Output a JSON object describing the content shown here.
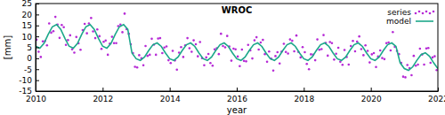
{
  "chart_data": {
    "type": "scatter",
    "title": "WROC",
    "x_label": "year",
    "y_label": "[mm]",
    "xlim": [
      2010,
      2022
    ],
    "xticks": [
      2010,
      2012,
      2014,
      2016,
      2018,
      2020,
      2022
    ],
    "ylim": [
      -15,
      25
    ],
    "yticks": [
      -15,
      -10,
      -5,
      0,
      5,
      10,
      15,
      20,
      25
    ],
    "grid": false,
    "legend": "top-right",
    "series": [
      {
        "name": "series",
        "type": "scatter",
        "marker": "dot",
        "color": "#b62ad6",
        "x": [
          2010.03,
          2010.09,
          2010.155,
          2010.215,
          2010.28,
          2010.34,
          2010.405,
          2010.465,
          2010.53,
          2010.59,
          2010.655,
          2010.715,
          2010.78,
          2010.84,
          2010.905,
          2010.965,
          2011.03,
          2011.09,
          2011.155,
          2011.215,
          2011.28,
          2011.34,
          2011.405,
          2011.465,
          2011.53,
          2011.59,
          2011.655,
          2011.715,
          2011.78,
          2011.84,
          2011.905,
          2011.965,
          2012.03,
          2012.09,
          2012.155,
          2012.215,
          2012.28,
          2012.34,
          2012.405,
          2012.465,
          2012.53,
          2012.59,
          2012.655,
          2012.715,
          2012.78,
          2012.84,
          2012.905,
          2012.965,
          2013.03,
          2013.09,
          2013.155,
          2013.215,
          2013.28,
          2013.34,
          2013.405,
          2013.465,
          2013.53,
          2013.59,
          2013.655,
          2013.715,
          2013.78,
          2013.84,
          2013.905,
          2013.965,
          2014.03,
          2014.09,
          2014.155,
          2014.215,
          2014.28,
          2014.34,
          2014.405,
          2014.465,
          2014.53,
          2014.59,
          2014.655,
          2014.715,
          2014.78,
          2014.84,
          2014.905,
          2014.965,
          2015.03,
          2015.09,
          2015.155,
          2015.215,
          2015.28,
          2015.34,
          2015.405,
          2015.465,
          2015.53,
          2015.59,
          2015.655,
          2015.715,
          2015.78,
          2015.84,
          2015.905,
          2015.965,
          2016.03,
          2016.09,
          2016.155,
          2016.215,
          2016.28,
          2016.34,
          2016.405,
          2016.465,
          2016.53,
          2016.59,
          2016.655,
          2016.715,
          2016.78,
          2016.84,
          2016.905,
          2016.965,
          2017.03,
          2017.09,
          2017.155,
          2017.215,
          2017.28,
          2017.34,
          2017.405,
          2017.465,
          2017.53,
          2017.59,
          2017.655,
          2017.715,
          2017.78,
          2017.84,
          2017.905,
          2017.965,
          2018.03,
          2018.09,
          2018.155,
          2018.215,
          2018.28,
          2018.34,
          2018.405,
          2018.465,
          2018.53,
          2018.59,
          2018.655,
          2018.715,
          2018.78,
          2018.84,
          2018.905,
          2018.965,
          2019.03,
          2019.09,
          2019.155,
          2019.215,
          2019.28,
          2019.34,
          2019.405,
          2019.465,
          2019.53,
          2019.59,
          2019.655,
          2019.715,
          2019.78,
          2019.84,
          2019.905,
          2019.965,
          2020.03,
          2020.09,
          2020.155,
          2020.215,
          2020.28,
          2020.34,
          2020.405,
          2020.465,
          2020.53,
          2020.59,
          2020.655,
          2020.715,
          2020.78,
          2020.84,
          2020.905,
          2020.965,
          2021.03,
          2021.09,
          2021.155,
          2021.215,
          2021.28,
          2021.34,
          2021.405,
          2021.465,
          2021.53,
          2021.59,
          2021.655,
          2021.715,
          2021.78,
          2021.84,
          2021.905,
          2021.965
        ],
        "values": [
          8.5,
          3.0,
          0.6,
          7.7,
          7.8,
          5.9,
          15.9,
          11.7,
          12.4,
          18.9,
          15.4,
          9.3,
          15.2,
          14.2,
          6.1,
          8.3,
          10.5,
          4.1,
          2.6,
          9.7,
          6.8,
          3.9,
          12.9,
          15.7,
          11.4,
          15.9,
          18.4,
          12.3,
          9.2,
          13.2,
          10.1,
          4.3,
          7.5,
          8.1,
          1.6,
          6.7,
          9.8,
          6.9,
          6.9,
          14.7,
          15.4,
          11.9,
          20.4,
          13.3,
          11.2,
          6.4,
          2.4,
          -3.9,
          -4.2,
          1.4,
          0.0,
          -3.2,
          5.6,
          1.1,
          1.6,
          8.9,
          6.2,
          1.6,
          9.0,
          9.2,
          2.4,
          4.9,
          5.4,
          -0.9,
          -2.2,
          3.4,
          -1.0,
          -5.2,
          2.6,
          5.1,
          0.6,
          5.9,
          9.2,
          4.6,
          3.0,
          8.2,
          6.4,
          0.9,
          7.4,
          0.1,
          -3.2,
          0.4,
          2.0,
          -2.2,
          -3.4,
          4.1,
          4.6,
          1.9,
          11.2,
          5.6,
          5.0,
          10.2,
          5.4,
          -1.1,
          4.4,
          4.1,
          0.8,
          -3.6,
          4.0,
          -1.2,
          -1.4,
          6.1,
          3.6,
          -0.1,
          8.2,
          9.6,
          4.0,
          7.2,
          8.4,
          1.9,
          -1.6,
          3.1,
          -0.2,
          -5.6,
          1.0,
          2.8,
          -2.4,
          3.1,
          6.6,
          2.9,
          2.2,
          8.6,
          8.0,
          3.2,
          10.4,
          2.9,
          0.4,
          5.1,
          2.8,
          -2.6,
          -5.0,
          1.8,
          1.6,
          -0.9,
          8.6,
          3.9,
          4.2,
          10.6,
          7.0,
          1.2,
          7.4,
          6.9,
          -0.6,
          2.1,
          4.8,
          -1.6,
          -3.0,
          3.8,
          0.6,
          -2.9,
          5.6,
          7.9,
          3.2,
          7.6,
          10.0,
          4.2,
          1.4,
          5.9,
          3.4,
          -1.9,
          1.8,
          2.4,
          -4.0,
          0.8,
          3.6,
          0.1,
          -0.4,
          6.9,
          7.2,
          3.6,
          12.0,
          5.2,
          3.4,
          1.9,
          -2.1,
          -8.4,
          -8.7,
          -3.1,
          -4.5,
          -7.7,
          1.1,
          -3.4,
          -2.9,
          4.4,
          1.7,
          -2.9,
          4.5,
          4.7,
          -2.1,
          0.4,
          0.9,
          -5.4
        ]
      },
      {
        "name": "model",
        "type": "line",
        "line_style": "solid",
        "color": "#1ca88a",
        "x": [
          2010,
          2010.125,
          2010.25,
          2010.375,
          2010.5,
          2010.625,
          2010.75,
          2010.875,
          2011,
          2011.125,
          2011.25,
          2011.375,
          2011.5,
          2011.625,
          2011.75,
          2011.875,
          2012,
          2012.125,
          2012.25,
          2012.375,
          2012.5,
          2012.625,
          2012.75,
          2012.875,
          2013,
          2013.125,
          2013.25,
          2013.375,
          2013.5,
          2013.625,
          2013.75,
          2013.875,
          2014,
          2014.125,
          2014.25,
          2014.375,
          2014.5,
          2014.625,
          2014.75,
          2014.875,
          2015,
          2015.125,
          2015.25,
          2015.375,
          2015.5,
          2015.625,
          2015.75,
          2015.875,
          2016,
          2016.125,
          2016.25,
          2016.375,
          2016.5,
          2016.625,
          2016.75,
          2016.875,
          2017,
          2017.125,
          2017.25,
          2017.375,
          2017.5,
          2017.625,
          2017.75,
          2017.875,
          2018,
          2018.125,
          2018.25,
          2018.375,
          2018.5,
          2018.625,
          2018.75,
          2018.875,
          2019,
          2019.125,
          2019.25,
          2019.375,
          2019.5,
          2019.625,
          2019.75,
          2019.875,
          2020,
          2020.125,
          2020.25,
          2020.375,
          2020.5,
          2020.625,
          2020.75,
          2020.875,
          2021,
          2021.125,
          2021.25,
          2021.375,
          2021.5,
          2021.625,
          2021.75,
          2021.875,
          2022
        ],
        "values": [
          5.5,
          4.6,
          6.8,
          10.9,
          14.4,
          15.4,
          13.2,
          9.1,
          5.5,
          4.6,
          6.8,
          10.9,
          14.4,
          15.4,
          13.2,
          9.1,
          5.5,
          4.6,
          6.8,
          10.9,
          14.4,
          15.4,
          13.2,
          2.4,
          -0.2,
          -1.0,
          0.6,
          3.6,
          6.2,
          7.0,
          5.4,
          2.4,
          -0.2,
          -1.0,
          0.6,
          3.6,
          6.2,
          7.0,
          5.4,
          2.4,
          -0.2,
          -1.0,
          0.6,
          3.6,
          6.2,
          7.0,
          5.4,
          2.4,
          -0.2,
          -1.0,
          0.6,
          3.6,
          6.2,
          7.0,
          5.4,
          2.4,
          -0.2,
          -1.0,
          0.6,
          3.6,
          6.2,
          7.0,
          5.4,
          2.4,
          -0.2,
          -1.0,
          0.6,
          3.6,
          6.2,
          7.0,
          5.4,
          2.4,
          -0.2,
          -1.0,
          0.6,
          3.6,
          6.2,
          7.0,
          5.4,
          2.4,
          -0.2,
          -1.0,
          0.6,
          3.6,
          6.2,
          7.0,
          5.4,
          -2.1,
          -4.7,
          -5.5,
          -3.9,
          -0.9,
          1.7,
          2.5,
          0.9,
          -2.1,
          -4.7
        ]
      }
    ]
  }
}
